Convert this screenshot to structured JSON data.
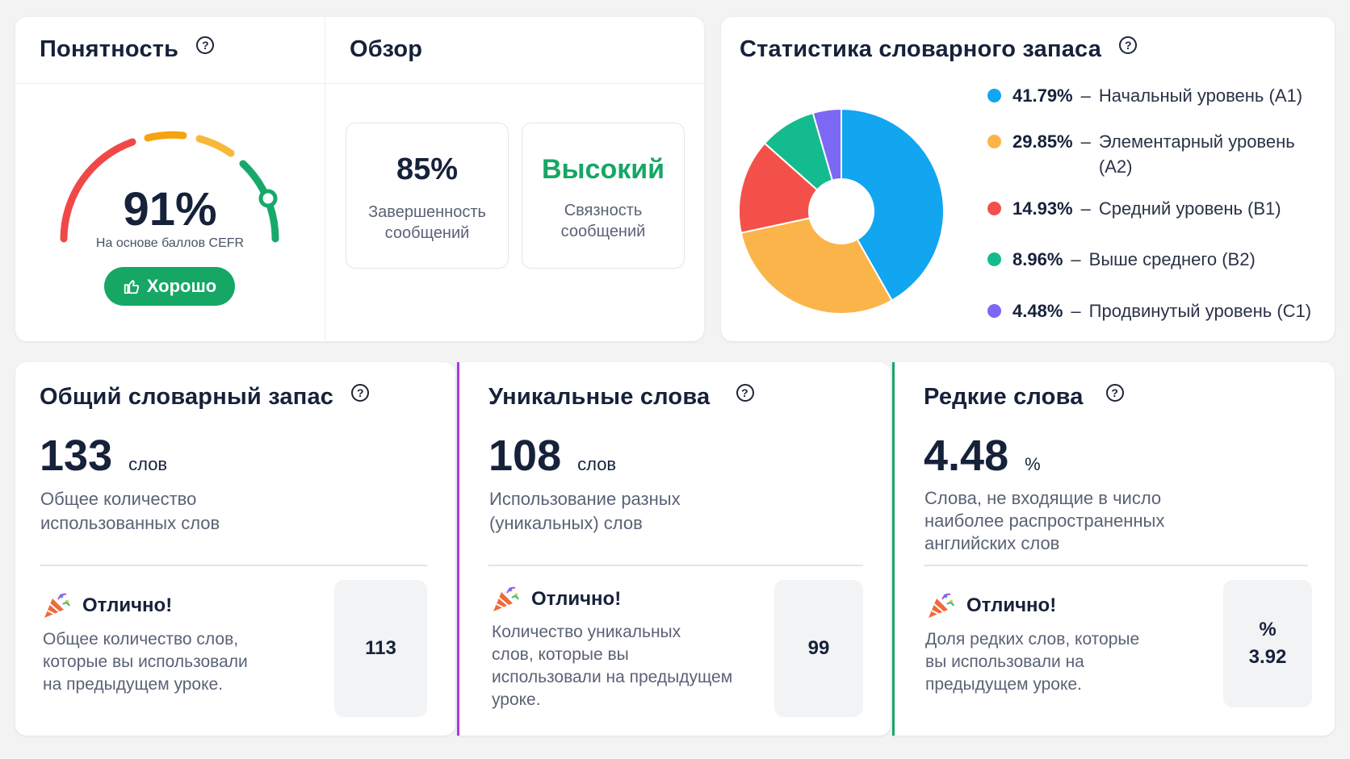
{
  "clarity": {
    "title": "Понятность",
    "help": "?",
    "value": "91%",
    "percent": 91,
    "caption": "На основе баллов CEFR",
    "badge": "Хорошо",
    "badge_icon": "thumbs-up-icon"
  },
  "overview": {
    "title": "Обзор",
    "stats": [
      {
        "value": "85%",
        "label_line1": "Завершенность",
        "label_line2": "сообщений"
      },
      {
        "value": "Высокий",
        "label_line1": "Связность",
        "label_line2": "сообщений"
      }
    ]
  },
  "vocab_stats": {
    "title": "Статистика словарного запаса",
    "help": "?",
    "items": [
      {
        "pct": "41.79%",
        "label": "Начальный уровень (A1)",
        "label2": "",
        "color": "#12a5f0"
      },
      {
        "pct": "29.85%",
        "label": "Элементарный уровень",
        "label2": "(A2)",
        "color": "#fbb44a"
      },
      {
        "pct": "14.93%",
        "label": "Средний уровень (B1)",
        "label2": "",
        "color": "#f4504a"
      },
      {
        "pct": "8.96%",
        "label": "Выше среднего (B2)",
        "label2": "",
        "color": "#14bb8e"
      },
      {
        "pct": "4.48%",
        "label": "Продвинутый уровень (C1)",
        "label2": "",
        "color": "#7d68f5"
      }
    ]
  },
  "chart_data": {
    "type": "pie",
    "title": "Статистика словарного запаса",
    "categories": [
      "Начальный уровень (A1)",
      "Элементарный уровень (A2)",
      "Средний уровень (B1)",
      "Выше среднего (B2)",
      "Продвинутый уровень (C1)"
    ],
    "values": [
      41.79,
      29.85,
      14.93,
      8.96,
      4.48
    ],
    "colors": [
      "#12a5f0",
      "#fbb44a",
      "#f4504a",
      "#14bb8e",
      "#7d68f5"
    ],
    "legend": "right"
  },
  "total_vocab": {
    "title": "Общий словарный запас",
    "help": "?",
    "value": "133",
    "unit": "слов",
    "desc_line1": "Общее количество",
    "desc_line2": "использованных слов",
    "praise": "Отлично!",
    "praise_desc": [
      "Общее количество слов,",
      "которые вы использовали",
      "на предыдущем уроке."
    ],
    "prev_value": "113"
  },
  "unique_words": {
    "title": "Уникальные слова",
    "help": "?",
    "value": "108",
    "unit": "слов",
    "desc_line1": "Использование разных",
    "desc_line2": "(уникальных) слов",
    "praise": "Отлично!",
    "praise_desc": [
      "Количество уникальных",
      "слов, которые вы",
      "использовали на предыдущем",
      "уроке."
    ],
    "prev_value": "99"
  },
  "rare_words": {
    "title": "Редкие слова",
    "help": "?",
    "value": "4.48",
    "unit": "%",
    "desc_lines": [
      "Слова, не входящие в число",
      "наиболее распространенных",
      "английских слов"
    ],
    "praise": "Отлично!",
    "praise_desc": [
      "Доля редких слов, которые",
      "вы использовали на",
      "предыдущем уроке."
    ],
    "prev_unit": "%",
    "prev_value": "3.92"
  }
}
